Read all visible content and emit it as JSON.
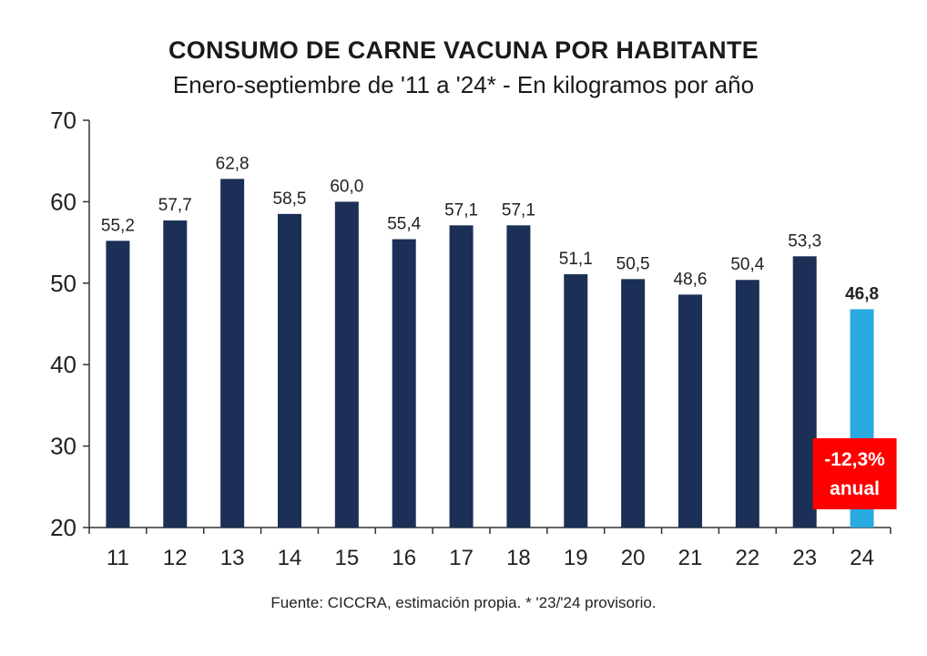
{
  "chart_data": {
    "type": "bar",
    "title": "CONSUMO DE CARNE VACUNA POR HABITANTE",
    "subtitle": "Enero-septiembre de '11 a '24* - En kilogramos por año",
    "categories": [
      "11",
      "12",
      "13",
      "14",
      "15",
      "16",
      "17",
      "18",
      "19",
      "20",
      "21",
      "22",
      "23",
      "24"
    ],
    "values": [
      55.2,
      57.7,
      62.8,
      58.5,
      60.0,
      55.4,
      57.1,
      57.1,
      51.1,
      50.5,
      48.6,
      50.4,
      53.3,
      46.8
    ],
    "value_labels": [
      "55,2",
      "57,7",
      "62,8",
      "58,5",
      "60,0",
      "55,4",
      "57,1",
      "57,1",
      "51,1",
      "50,5",
      "48,6",
      "50,4",
      "53,3",
      "46,8"
    ],
    "ylim": [
      20,
      70
    ],
    "yticks": [
      20,
      30,
      40,
      50,
      60,
      70
    ],
    "ytick_labels": [
      "20",
      "30",
      "40",
      "50",
      "60",
      "70"
    ],
    "grid": false,
    "colors": {
      "bar": "#1b2f57",
      "highlight_bar": "#29aae1",
      "annotation_bg": "#ff0000"
    },
    "highlight_index": 13,
    "annotation": {
      "line1": "-12,3%",
      "line2": "anual"
    },
    "source": "Fuente: CICCRA, estimación propia. * '23/'24 provisorio."
  }
}
